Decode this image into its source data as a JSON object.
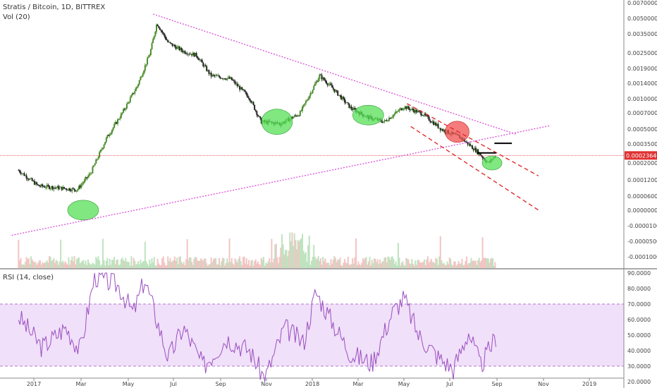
{
  "header": {
    "title": "Stratis / Bitcoin, 1D, BITTREX",
    "vol_label": "Vol (20)",
    "rsi_label": "RSI (14, close)"
  },
  "price_axis": {
    "ticks": [
      "0.00700000",
      "0.00500000",
      "0.00350000",
      "0.00250000",
      "0.00190000",
      "0.00140000",
      "0.00100000",
      "0.00070000",
      "0.00050000",
      "0.00035000",
      "0.00020000",
      "0.00012000",
      "0.00006000",
      "0.00000000",
      "-0.00001000",
      "-0.00005000",
      "-0.00010000"
    ],
    "current_price": "0.00023640"
  },
  "rsi_axis": {
    "ticks": [
      "90.0000",
      "80.0000",
      "70.0000",
      "60.0000",
      "50.0000",
      "40.0000",
      "30.0000",
      "20.0000"
    ]
  },
  "time_axis": {
    "ticks": [
      "2017",
      "Mar",
      "May",
      "Jul",
      "Sep",
      "Nov",
      "2018",
      "Mar",
      "May",
      "Jul",
      "Sep",
      "Nov",
      "2019"
    ]
  },
  "colors": {
    "up": "#4a8c2a",
    "down": "#222222",
    "trendline": "#d94fd9",
    "channel": "#e02020",
    "current_line": "#e03030",
    "rsi_line": "#9b4fc0",
    "rsi_band": "#ead3f7",
    "green_zone": "#57e057",
    "red_zone": "#f05050"
  },
  "chart_data": {
    "type": "candlestick",
    "symbol": "Stratis / Bitcoin",
    "interval": "1D",
    "exchange": "BITTREX",
    "price_scale": "log",
    "rsi_range": [
      20,
      90
    ],
    "rsi_band": [
      30,
      70
    ],
    "close_path": [
      {
        "date": "2016-12-10",
        "close": 0.00017
      },
      {
        "date": "2017-01-05",
        "close": 0.00012
      },
      {
        "date": "2017-02-01",
        "close": 0.000115
      },
      {
        "date": "2017-02-25",
        "close": 0.00011
      },
      {
        "date": "2017-03-15",
        "close": 0.00016
      },
      {
        "date": "2017-04-05",
        "close": 0.00035
      },
      {
        "date": "2017-04-25",
        "close": 0.0006
      },
      {
        "date": "2017-05-15",
        "close": 0.0011
      },
      {
        "date": "2017-06-01",
        "close": 0.0023
      },
      {
        "date": "2017-06-10",
        "close": 0.0045
      },
      {
        "date": "2017-06-25",
        "close": 0.0029
      },
      {
        "date": "2017-07-15",
        "close": 0.0024
      },
      {
        "date": "2017-08-01",
        "close": 0.0022
      },
      {
        "date": "2017-08-20",
        "close": 0.0014
      },
      {
        "date": "2017-09-15",
        "close": 0.0013
      },
      {
        "date": "2017-10-10",
        "close": 0.00085
      },
      {
        "date": "2017-10-25",
        "close": 0.0005
      },
      {
        "date": "2017-11-20",
        "close": 0.00048
      },
      {
        "date": "2017-12-15",
        "close": 0.0006
      },
      {
        "date": "2018-01-10",
        "close": 0.0014
      },
      {
        "date": "2018-01-25",
        "close": 0.0011
      },
      {
        "date": "2018-02-20",
        "close": 0.00068
      },
      {
        "date": "2018-03-15",
        "close": 0.00055
      },
      {
        "date": "2018-04-05",
        "close": 0.0005
      },
      {
        "date": "2018-05-01",
        "close": 0.0007
      },
      {
        "date": "2018-05-25",
        "close": 0.0006
      },
      {
        "date": "2018-06-20",
        "close": 0.00042
      },
      {
        "date": "2018-07-15",
        "close": 0.00035
      },
      {
        "date": "2018-08-05",
        "close": 0.00026
      },
      {
        "date": "2018-08-20",
        "close": 0.0002
      },
      {
        "date": "2018-08-30",
        "close": 0.0002364
      }
    ],
    "rsi_path": [
      {
        "date": "2016-12-10",
        "rsi": 62
      },
      {
        "date": "2017-01-10",
        "rsi": 42
      },
      {
        "date": "2017-02-10",
        "rsi": 55
      },
      {
        "date": "2017-03-01",
        "rsi": 40
      },
      {
        "date": "2017-03-20",
        "rsi": 88
      },
      {
        "date": "2017-04-20",
        "rsi": 82
      },
      {
        "date": "2017-05-10",
        "rsi": 64
      },
      {
        "date": "2017-05-25",
        "rsi": 86
      },
      {
        "date": "2017-06-25",
        "rsi": 35
      },
      {
        "date": "2017-07-15",
        "rsi": 55
      },
      {
        "date": "2017-08-10",
        "rsi": 30
      },
      {
        "date": "2017-09-10",
        "rsi": 48
      },
      {
        "date": "2017-10-10",
        "rsi": 40
      },
      {
        "date": "2017-10-30",
        "rsi": 22
      },
      {
        "date": "2017-11-25",
        "rsi": 55
      },
      {
        "date": "2017-12-20",
        "rsi": 45
      },
      {
        "date": "2018-01-05",
        "rsi": 78
      },
      {
        "date": "2018-01-25",
        "rsi": 60
      },
      {
        "date": "2018-02-20",
        "rsi": 38
      },
      {
        "date": "2018-03-20",
        "rsi": 32
      },
      {
        "date": "2018-04-15",
        "rsi": 64
      },
      {
        "date": "2018-05-01",
        "rsi": 74
      },
      {
        "date": "2018-05-20",
        "rsi": 50
      },
      {
        "date": "2018-06-15",
        "rsi": 36
      },
      {
        "date": "2018-07-05",
        "rsi": 28
      },
      {
        "date": "2018-07-25",
        "rsi": 52
      },
      {
        "date": "2018-08-10",
        "rsi": 30
      },
      {
        "date": "2018-08-30",
        "rsi": 49
      }
    ],
    "annotations": {
      "upper_trendline": [
        {
          "date": "2017-06-05",
          "price": 0.0055
        },
        {
          "date": "2018-09-25",
          "price": 0.00038
        }
      ],
      "lower_trendline": [
        {
          "date": "2016-12-01",
          "price": 4e-05
        },
        {
          "date": "2018-11-10",
          "price": 0.00046
        }
      ],
      "channel_upper": [
        {
          "date": "2018-05-05",
          "price": 0.00075
        },
        {
          "date": "2018-10-25",
          "price": 0.00015
        }
      ],
      "channel_lower": [
        {
          "date": "2018-05-10",
          "price": 0.00045
        },
        {
          "date": "2018-10-25",
          "price": 7e-05
        }
      ],
      "resistance_segment": [
        {
          "date": "2018-08-28",
          "price": 0.00031
        },
        {
          "date": "2018-09-20",
          "price": 0.00031
        }
      ],
      "support_segment": [
        {
          "date": "2018-08-05",
          "price": 0.00025
        },
        {
          "date": "2018-08-30",
          "price": 0.00025
        }
      ],
      "green_zones": [
        {
          "date": "2017-03-05",
          "price": 7e-05
        },
        {
          "date": "2017-11-15",
          "price": 0.0005
        },
        {
          "date": "2018-03-15",
          "price": 0.00058
        },
        {
          "date": "2018-08-25",
          "price": 0.0002
        }
      ],
      "red_zones": [
        {
          "date": "2018-07-10",
          "price": 0.0004
        }
      ]
    }
  }
}
